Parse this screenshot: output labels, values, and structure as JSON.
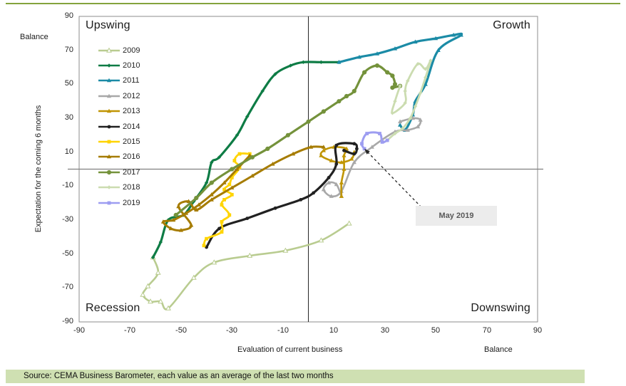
{
  "frame": {
    "top_rule_color": "#84a33d",
    "plot_border_color": "#8c8c8c",
    "vline_color": "#262626",
    "hline_color": "#808080",
    "arrow_color": "#262626",
    "annotation_bg": "#ececec"
  },
  "source_bar": {
    "text": "Source: CEMA Business Barometer, each value as an average of the last two months",
    "bg": "#cfe0b2"
  },
  "chart_data": {
    "type": "line",
    "title": "",
    "xlabel": "Evaluation  of current business",
    "ylabel": "Expectation  for the coming 6 months",
    "x_axis_unit_label": "Balance",
    "y_axis_unit_label": "Balance",
    "xlim": [
      -90,
      90
    ],
    "ylim": [
      -90,
      90
    ],
    "x_ticks": [
      -90,
      -70,
      -50,
      -30,
      -10,
      10,
      30,
      50,
      70,
      90
    ],
    "y_ticks": [
      90,
      70,
      50,
      30,
      10,
      -10,
      -30,
      -50,
      -70,
      -90
    ],
    "grid": "none (crosshair axes at 0,0)",
    "legend_position": "inside top-left",
    "quadrant_labels": {
      "top_left": "Upswing",
      "top_right": "Growth",
      "bottom_left": "Recession",
      "bottom_right": "Downswing"
    },
    "annotation": {
      "label": "May 2019",
      "target": [
        22,
        12
      ]
    },
    "series": [
      {
        "name": "2009",
        "color": "#b9cc90",
        "marker": "triangle-open",
        "width": 2.6,
        "points": [
          [
            16,
            -32
          ],
          [
            5,
            -42
          ],
          [
            -9,
            -48
          ],
          [
            -23,
            -51
          ],
          [
            -37,
            -55
          ],
          [
            -45,
            -64
          ],
          [
            -55,
            -82
          ],
          [
            -58,
            -78
          ],
          [
            -62,
            -78
          ],
          [
            -65,
            -74
          ],
          [
            -63,
            -69
          ],
          [
            -59,
            -61
          ],
          [
            -61,
            -52
          ]
        ]
      },
      {
        "name": "2010",
        "color": "#0e7c45",
        "marker": "diamond",
        "width": 3.2,
        "points": [
          [
            -61,
            -52
          ],
          [
            -58,
            -43
          ],
          [
            -55,
            -30
          ],
          [
            -49,
            -27
          ],
          [
            -45,
            -19
          ],
          [
            -40,
            -8
          ],
          [
            -38,
            4
          ],
          [
            -35,
            7
          ],
          [
            -28,
            20
          ],
          [
            -24,
            31
          ],
          [
            -18,
            46
          ],
          [
            -13,
            56
          ],
          [
            -7,
            61
          ],
          [
            -2,
            63
          ],
          [
            5,
            63
          ],
          [
            12,
            63
          ]
        ]
      },
      {
        "name": "2011",
        "color": "#1b8ba6",
        "marker": "triangle",
        "width": 3.2,
        "points": [
          [
            12,
            63
          ],
          [
            20,
            66
          ],
          [
            27,
            68
          ],
          [
            34,
            71
          ],
          [
            42,
            75
          ],
          [
            50,
            77
          ],
          [
            57,
            79
          ],
          [
            60,
            79
          ],
          [
            51,
            70
          ],
          [
            46,
            50
          ],
          [
            42,
            40
          ],
          [
            41,
            32
          ],
          [
            38,
            23
          ],
          [
            36,
            26
          ]
        ]
      },
      {
        "name": "2012",
        "color": "#a8a8a8",
        "marker": "triangle",
        "width": 2.6,
        "points": [
          [
            36,
            28
          ],
          [
            41,
            30
          ],
          [
            44,
            29
          ],
          [
            43,
            25
          ],
          [
            39,
            23
          ],
          [
            34,
            22
          ],
          [
            25,
            13
          ],
          [
            18,
            4
          ],
          [
            13,
            -13
          ],
          [
            9,
            -16
          ],
          [
            6,
            -12
          ],
          [
            8,
            -8
          ],
          [
            11,
            -9
          ],
          [
            13,
            -16
          ]
        ]
      },
      {
        "name": "2013",
        "color": "#c09502",
        "marker": "triangle",
        "width": 2.6,
        "points": [
          [
            13,
            -16
          ],
          [
            13,
            -8
          ],
          [
            14,
            0
          ],
          [
            14,
            8
          ],
          [
            15,
            12
          ],
          [
            10,
            13
          ],
          [
            6,
            11
          ],
          [
            5,
            8
          ],
          [
            9,
            5
          ],
          [
            13,
            4
          ],
          [
            17,
            6
          ],
          [
            18,
            10
          ]
        ]
      },
      {
        "name": "2014",
        "color": "#212121",
        "marker": "circle",
        "width": 3.2,
        "points": [
          [
            -40,
            -46
          ],
          [
            -35,
            -35
          ],
          [
            -24,
            -29
          ],
          [
            -13,
            -23
          ],
          [
            -3,
            -18
          ],
          [
            2,
            -14
          ],
          [
            8,
            -5
          ],
          [
            11,
            3
          ],
          [
            11,
            14
          ],
          [
            18,
            15
          ],
          [
            19,
            12
          ],
          [
            18,
            9
          ],
          [
            14,
            11
          ]
        ]
      },
      {
        "name": "2015",
        "color": "#ffd400",
        "marker": "square",
        "width": 2.8,
        "points": [
          [
            -41,
            -45
          ],
          [
            -40,
            -41
          ],
          [
            -34,
            -37
          ],
          [
            -34,
            -31
          ],
          [
            -31,
            -27
          ],
          [
            -34,
            -21
          ],
          [
            -33,
            -18
          ],
          [
            -30,
            -15
          ],
          [
            -33,
            -12
          ],
          [
            -31,
            -9
          ],
          [
            -30,
            -5
          ],
          [
            -27,
            1
          ],
          [
            -29,
            5
          ],
          [
            -27,
            9
          ],
          [
            -23,
            9
          ]
        ]
      },
      {
        "name": "2016",
        "color": "#a67c00",
        "marker": "triangle",
        "width": 3.0,
        "points": [
          [
            -23,
            8
          ],
          [
            -28,
            0
          ],
          [
            -33,
            -8
          ],
          [
            -38,
            -15
          ],
          [
            -43,
            -21
          ],
          [
            -48,
            -26
          ],
          [
            -53,
            -30
          ],
          [
            -57,
            -31
          ],
          [
            -54,
            -35
          ],
          [
            -50,
            -36
          ],
          [
            -46,
            -33
          ],
          [
            -51,
            -22
          ],
          [
            -47,
            -19
          ],
          [
            -44,
            -24
          ],
          [
            -38,
            -18
          ],
          [
            -30,
            -11
          ],
          [
            -22,
            -4
          ],
          [
            -14,
            3
          ],
          [
            -6,
            9
          ],
          [
            1,
            13
          ],
          [
            6,
            13
          ]
        ]
      },
      {
        "name": "2017",
        "color": "#74923b",
        "marker": "circle",
        "marker_size": 3.4,
        "width": 3.2,
        "points": [
          [
            -52,
            -27
          ],
          [
            -44,
            -17
          ],
          [
            -38,
            -8
          ],
          [
            -30,
            0
          ],
          [
            -22,
            7
          ],
          [
            -16,
            12
          ],
          [
            -8,
            20
          ],
          [
            0,
            28
          ],
          [
            6,
            34
          ],
          [
            12,
            40
          ],
          [
            15,
            43
          ],
          [
            18,
            46
          ],
          [
            22,
            57
          ],
          [
            27,
            61
          ],
          [
            31,
            57
          ],
          [
            33,
            55
          ],
          [
            34,
            50
          ],
          [
            33,
            48
          ],
          [
            36,
            49
          ]
        ]
      },
      {
        "name": "2018",
        "color": "#cbdcb0",
        "marker": "diamond",
        "width": 2.8,
        "points": [
          [
            36,
            49
          ],
          [
            34,
            40
          ],
          [
            33,
            33
          ],
          [
            38,
            39
          ],
          [
            38,
            46
          ],
          [
            39,
            52
          ],
          [
            43,
            62
          ],
          [
            46,
            59
          ],
          [
            48,
            64
          ],
          [
            46,
            54
          ],
          [
            44,
            45
          ],
          [
            42,
            37
          ],
          [
            40,
            30
          ],
          [
            37,
            24
          ],
          [
            34,
            21
          ],
          [
            31,
            17
          ]
        ]
      },
      {
        "name": "2019",
        "color": "#9d9df1",
        "marker": "square",
        "width": 3.0,
        "points": [
          [
            31,
            17
          ],
          [
            29,
            16
          ],
          [
            28,
            21
          ],
          [
            23,
            21
          ],
          [
            21,
            15
          ],
          [
            22,
            12
          ]
        ]
      }
    ]
  }
}
